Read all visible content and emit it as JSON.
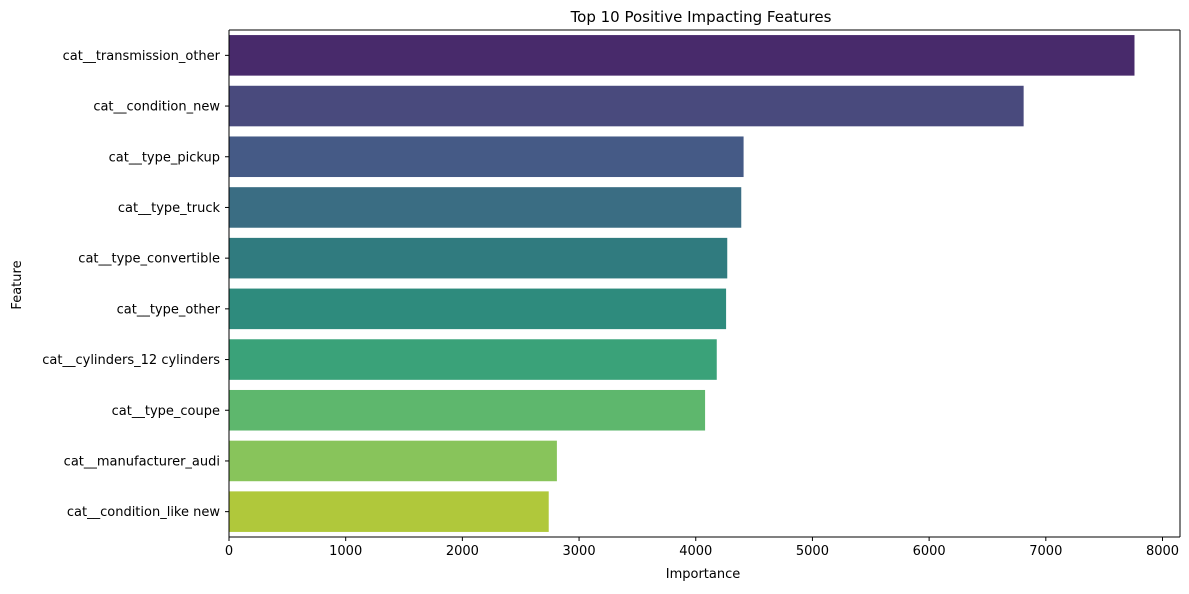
{
  "chart_data": {
    "type": "bar",
    "orientation": "horizontal",
    "title": "Top 10 Positive Impacting Features",
    "xlabel": "Importance",
    "ylabel": "Feature",
    "xlim": [
      0,
      8150
    ],
    "xticks": [
      0,
      1000,
      2000,
      3000,
      4000,
      5000,
      6000,
      7000,
      8000
    ],
    "grid": false,
    "legend": "none",
    "categories": [
      "cat__transmission_other",
      "cat__condition_new",
      "cat__type_pickup",
      "cat__type_truck",
      "cat__type_convertible",
      "cat__type_other",
      "cat__cylinders_12 cylinders",
      "cat__type_coupe",
      "cat__manufacturer_audi",
      "cat__condition_like new"
    ],
    "values": [
      7760,
      6810,
      4410,
      4390,
      4270,
      4260,
      4180,
      4080,
      2810,
      2740
    ],
    "colors": [
      "#482a6b",
      "#494a7d",
      "#455a86",
      "#3a6d83",
      "#307b7f",
      "#2e8b7d",
      "#3aa279",
      "#5eb76d",
      "#88c45b",
      "#b0c83b"
    ]
  }
}
